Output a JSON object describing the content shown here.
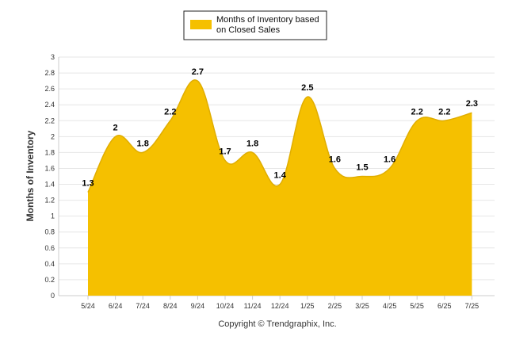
{
  "chart_data": {
    "type": "area",
    "categories": [
      "5/24",
      "6/24",
      "7/24",
      "8/24",
      "9/24",
      "10/24",
      "11/24",
      "12/24",
      "1/25",
      "2/25",
      "3/25",
      "4/25",
      "5/25",
      "6/25",
      "7/25"
    ],
    "series": [
      {
        "name": "Months of Inventory based on Closed Sales",
        "values": [
          1.3,
          2,
          1.8,
          2.2,
          2.7,
          1.7,
          1.8,
          1.4,
          2.5,
          1.6,
          1.5,
          1.6,
          2.2,
          2.2,
          2.3
        ],
        "color": "#f5c000"
      }
    ],
    "data_labels": [
      "1.3",
      "2",
      "1.8",
      "2.2",
      "2.7",
      "1.7",
      "1.8",
      "1.4",
      "2.5",
      "1.6",
      "1.5",
      "1.6",
      "2.2",
      "2.2",
      "2.3"
    ],
    "legend_lines": [
      "Months of Inventory based",
      "on Closed Sales"
    ],
    "ylabel": "Months of Inventory",
    "xlabel": "",
    "ylim": [
      0,
      3
    ],
    "yticks": [
      "0",
      "0.2",
      "0.4",
      "0.6",
      "0.8",
      "1",
      "1.2",
      "1.4",
      "1.6",
      "1.8",
      "2",
      "2.2",
      "2.4",
      "2.6",
      "2.8",
      "3"
    ],
    "grid": true,
    "legend_position": "top-center",
    "footer": "Copyright © Trendgraphix, Inc."
  }
}
